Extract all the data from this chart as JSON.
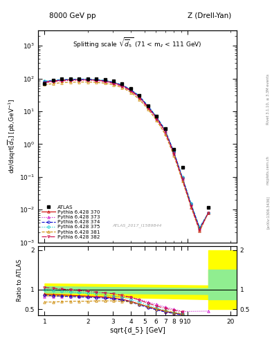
{
  "title_left": "8000 GeV pp",
  "title_right": "Z (Drell-Yan)",
  "main_title": "Splitting scale $\\sqrt{\\overline{d}_5}$ (71 < m$_{ll}$ < 111 GeV)",
  "ylabel_main": "d$\\sigma$/dsqrt[$\\overline{d}_5$] [pb,GeV$^{-1}$]",
  "ylabel_ratio": "Ratio to ATLAS",
  "xlabel": "sqrt{d_5} [GeV]",
  "watermark": "ATLAS_2017_I1589844",
  "side_text1": "Rivet 3.1.10, ≥ 3.3M events",
  "side_text2": "mcplots.cern.ch [arXiv:1306.3436]",
  "x_values": [
    1.0,
    1.15,
    1.32,
    1.52,
    1.74,
    2.0,
    2.3,
    2.64,
    3.03,
    3.48,
    4.0,
    4.6,
    5.28,
    6.06,
    6.96,
    8.0,
    9.19,
    10.56,
    12.13,
    13.93
  ],
  "atlas_y": [
    70,
    90,
    100,
    100,
    100,
    100,
    100,
    95,
    85,
    70,
    50,
    30,
    15,
    7,
    3.0,
    0.7,
    0.2,
    null,
    null,
    0.012
  ],
  "pythia_370_y": [
    80,
    85,
    90,
    92,
    93,
    93,
    90,
    85,
    75,
    62,
    45,
    28,
    14,
    6.5,
    2.5,
    0.55,
    0.09,
    0.014,
    0.0025,
    0.008
  ],
  "pythia_373_y": [
    78,
    83,
    88,
    90,
    91,
    91,
    88,
    83,
    73,
    60,
    43,
    26,
    13,
    6.0,
    2.2,
    0.5,
    0.08,
    0.012,
    0.0022,
    0.008
  ],
  "pythia_374_y": [
    82,
    87,
    92,
    94,
    95,
    95,
    92,
    87,
    77,
    64,
    46,
    29,
    14.5,
    6.8,
    2.7,
    0.58,
    0.095,
    0.015,
    0.0028,
    0.008
  ],
  "pythia_375_y": [
    84,
    89,
    94,
    96,
    97,
    97,
    94,
    89,
    79,
    65,
    47,
    30,
    15,
    7.0,
    2.8,
    0.6,
    0.1,
    0.016,
    0.003,
    0.008
  ],
  "pythia_381_y": [
    65,
    70,
    75,
    77,
    78,
    78,
    76,
    72,
    64,
    53,
    38,
    23,
    11.5,
    5.3,
    2.0,
    0.45,
    0.075,
    0.012,
    0.0022,
    0.008
  ],
  "pythia_382_y": [
    75,
    80,
    85,
    87,
    88,
    88,
    85,
    80,
    71,
    58,
    42,
    26,
    13,
    6.0,
    2.4,
    0.52,
    0.086,
    0.013,
    0.0024,
    0.008
  ],
  "ratio_370": [
    0.88,
    0.87,
    0.86,
    0.85,
    0.84,
    0.83,
    0.82,
    0.8,
    0.78,
    0.75,
    0.7,
    0.63,
    0.56,
    0.5,
    0.44,
    0.4,
    0.36,
    null,
    null,
    null
  ],
  "ratio_373": [
    0.82,
    0.82,
    0.82,
    0.82,
    0.82,
    0.82,
    0.82,
    0.82,
    0.82,
    0.82,
    0.8,
    0.75,
    0.68,
    0.62,
    0.55,
    0.5,
    0.44,
    null,
    null,
    0.45
  ],
  "ratio_374": [
    0.85,
    0.84,
    0.83,
    0.82,
    0.81,
    0.8,
    0.79,
    0.78,
    0.76,
    0.73,
    0.68,
    0.61,
    0.54,
    0.48,
    0.43,
    0.39,
    0.35,
    null,
    null,
    null
  ],
  "ratio_375": [
    1.0,
    0.98,
    0.96,
    0.94,
    0.92,
    0.9,
    0.88,
    0.86,
    0.84,
    0.8,
    0.75,
    0.68,
    0.6,
    0.53,
    0.47,
    0.42,
    0.38,
    null,
    null,
    null
  ],
  "ratio_381": [
    0.68,
    0.68,
    0.69,
    0.7,
    0.7,
    0.7,
    0.71,
    0.71,
    0.71,
    0.7,
    0.68,
    0.63,
    0.57,
    0.51,
    0.46,
    0.42,
    0.38,
    null,
    null,
    null
  ],
  "ratio_382": [
    1.05,
    1.03,
    1.01,
    0.99,
    0.97,
    0.95,
    0.93,
    0.91,
    0.89,
    0.85,
    0.8,
    0.73,
    0.65,
    0.58,
    0.52,
    0.47,
    0.43,
    null,
    null,
    null
  ],
  "color_370": "#cc0000",
  "color_373": "#cc00cc",
  "color_374": "#0000cc",
  "color_375": "#00cccc",
  "color_381": "#cc8800",
  "color_382": "#cc0044",
  "xlim": [
    0.9,
    22.0
  ],
  "ylim_main": [
    0.001,
    3000.0
  ],
  "ylim_ratio": [
    0.35,
    2.1
  ],
  "ratio_yticks": [
    0.5,
    1.0,
    2.0
  ],
  "ratio_yticklabels": [
    "0.5",
    "1",
    "2"
  ]
}
